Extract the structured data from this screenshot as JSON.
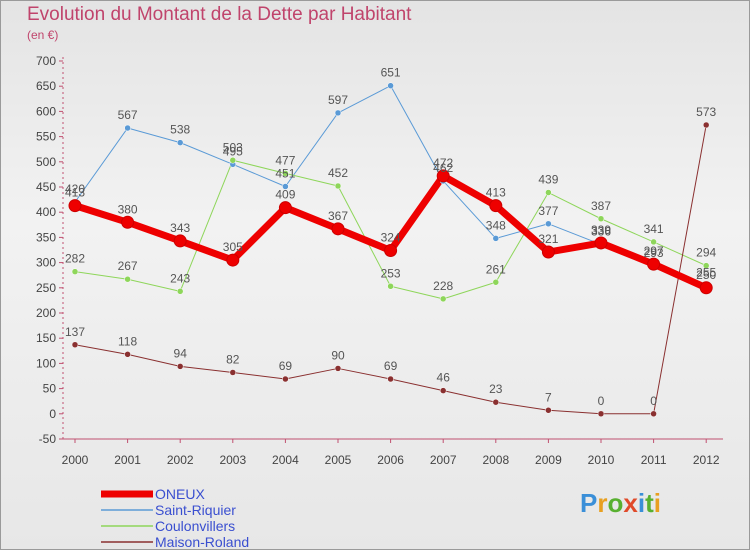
{
  "header": {
    "title": "Evolution du Montant de la Dette par Habitant",
    "unit": "(en €)"
  },
  "logo": {
    "text": "Proxiti",
    "letter_colors": [
      "#3a8fd8",
      "#e8a020",
      "#58b030",
      "#e04a2a",
      "#3a8fd8",
      "#58b030",
      "#e8a020"
    ]
  },
  "chart_data": {
    "type": "line",
    "x": [
      "2000",
      "2001",
      "2002",
      "2003",
      "2004",
      "2005",
      "2006",
      "2007",
      "2008",
      "2009",
      "2010",
      "2011",
      "2012"
    ],
    "ylim": [
      -50,
      700
    ],
    "yticks": [
      -50,
      0,
      50,
      100,
      150,
      200,
      250,
      300,
      350,
      400,
      450,
      500,
      550,
      600,
      650,
      700
    ],
    "grid": false,
    "legend_position": "bottom-left",
    "series": [
      {
        "name": "Saint-Riquier",
        "color": "#5a9ad6",
        "line_width": 1,
        "values": [
          420,
          567,
          538,
          495,
          451,
          597,
          651,
          462,
          348,
          377,
          336,
          293,
          255
        ],
        "labels": [
          "420",
          "567",
          "538",
          "495",
          "451",
          "597",
          "651",
          "462",
          "348",
          "377",
          "336",
          "293",
          "255"
        ]
      },
      {
        "name": "Coulonvillers",
        "color": "#8ed65a",
        "line_width": 1,
        "values": [
          282,
          267,
          243,
          503,
          477,
          452,
          253,
          228,
          261,
          439,
          387,
          341,
          294
        ],
        "labels": [
          "282",
          "267",
          "243",
          "503",
          "477",
          "452",
          "253",
          "228",
          "261",
          "439",
          "387",
          "341",
          "294"
        ]
      },
      {
        "name": "Maison-Roland",
        "color": "#8a3030",
        "line_width": 1,
        "values": [
          137,
          118,
          94,
          82,
          69,
          90,
          69,
          46,
          23,
          7,
          0,
          0,
          573
        ],
        "labels": [
          "137",
          "118",
          "94",
          "82",
          "69",
          "90",
          "69",
          "46",
          "23",
          "7",
          "0",
          "0",
          "573"
        ]
      },
      {
        "name": "ONEUX",
        "color": "#ee0000",
        "line_width": 7,
        "values": [
          413,
          380,
          343,
          305,
          409,
          367,
          324,
          472,
          413,
          321,
          339,
          297,
          250
        ],
        "labels": [
          "413",
          "380",
          "343",
          "305",
          "409",
          "367",
          "324",
          "472",
          "413",
          "321",
          "339",
          "297",
          "250"
        ]
      }
    ],
    "legend": [
      "ONEUX",
      "Saint-Riquier",
      "Coulonvillers",
      "Maison-Roland"
    ]
  }
}
